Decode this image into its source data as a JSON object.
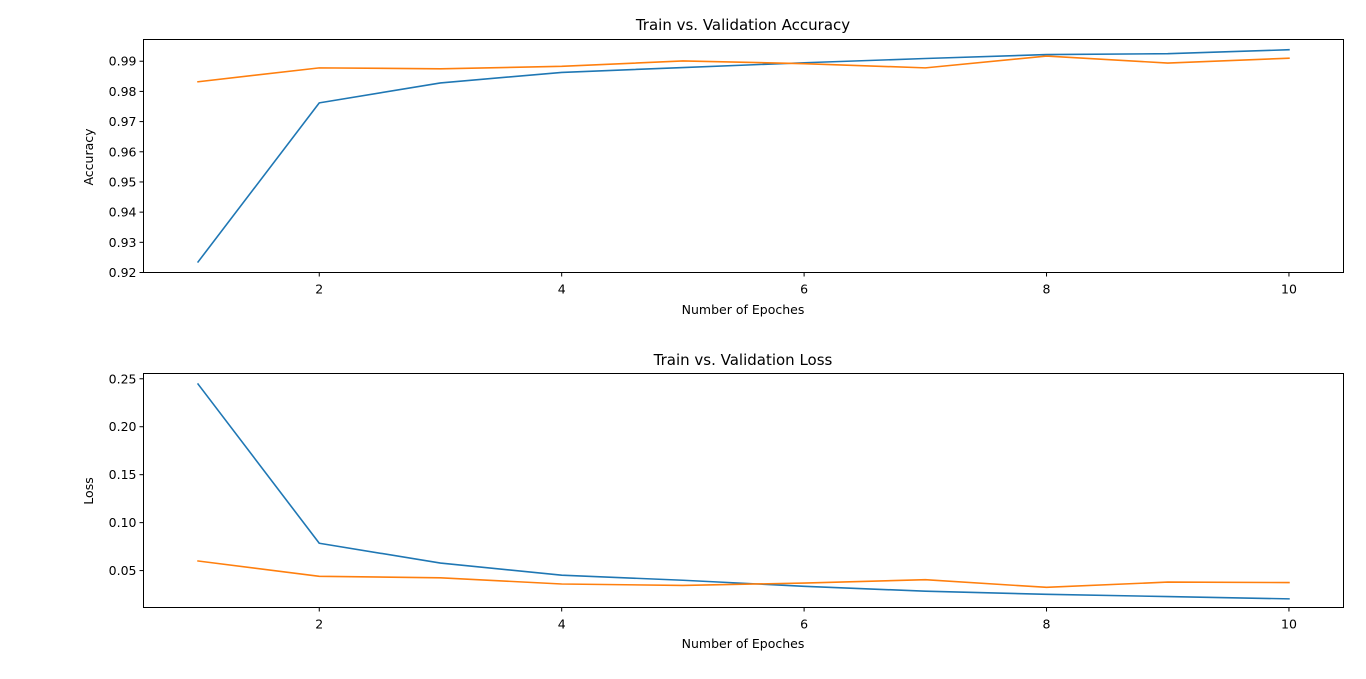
{
  "chart_data": [
    {
      "type": "line",
      "title": "Train vs. Validation Accuracy",
      "xlabel": "Number of Epoches",
      "ylabel": "Accuracy",
      "x": [
        1,
        2,
        3,
        4,
        5,
        6,
        7,
        8,
        9,
        10
      ],
      "xlim": [
        0.55,
        10.45
      ],
      "ylim": [
        0.92,
        0.9972
      ],
      "xticks": [
        2,
        4,
        6,
        8,
        10
      ],
      "xtick_labels": [
        "2",
        "4",
        "6",
        "8",
        "10"
      ],
      "yticks": [
        0.92,
        0.93,
        0.94,
        0.95,
        0.96,
        0.97,
        0.98,
        0.99
      ],
      "ytick_labels": [
        "0.92",
        "0.93",
        "0.94",
        "0.95",
        "0.96",
        "0.97",
        "0.98",
        "0.99"
      ],
      "grid": false,
      "series": [
        {
          "color": "#1f77b4",
          "values": [
            0.9235,
            0.9762,
            0.9828,
            0.9863,
            0.9879,
            0.9895,
            0.9909,
            0.9922,
            0.9925,
            0.9938
          ]
        },
        {
          "color": "#ff7f0e",
          "values": [
            0.9832,
            0.9878,
            0.9875,
            0.9883,
            0.9901,
            0.9892,
            0.9878,
            0.9917,
            0.9894,
            0.991
          ]
        }
      ]
    },
    {
      "type": "line",
      "title": "Train vs. Validation Loss",
      "xlabel": "Number of Epoches",
      "ylabel": "Loss",
      "x": [
        1,
        2,
        3,
        4,
        5,
        6,
        7,
        8,
        9,
        10
      ],
      "xlim": [
        0.55,
        10.45
      ],
      "ylim": [
        0.0115,
        0.2555
      ],
      "xticks": [
        2,
        4,
        6,
        8,
        10
      ],
      "xtick_labels": [
        "2",
        "4",
        "6",
        "8",
        "10"
      ],
      "yticks": [
        0.05,
        0.1,
        0.15,
        0.2,
        0.25
      ],
      "ytick_labels": [
        "0.05",
        "0.10",
        "0.15",
        "0.20",
        "0.25"
      ],
      "grid": false,
      "series": [
        {
          "color": "#1f77b4",
          "values": [
            0.2445,
            0.0785,
            0.0578,
            0.0452,
            0.0399,
            0.0336,
            0.0285,
            0.0252,
            0.0229,
            0.0205
          ]
        },
        {
          "color": "#ff7f0e",
          "values": [
            0.06,
            0.044,
            0.0425,
            0.036,
            0.0345,
            0.037,
            0.0405,
            0.0325,
            0.038,
            0.0375
          ]
        }
      ]
    }
  ]
}
